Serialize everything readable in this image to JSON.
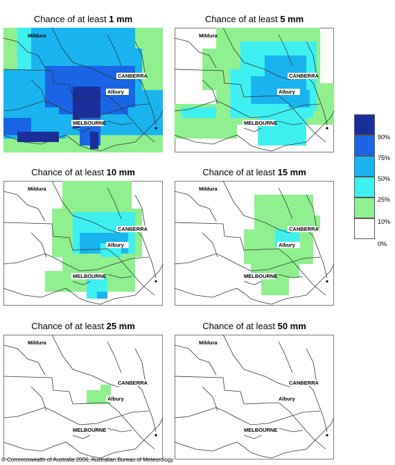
{
  "panels": [
    {
      "prefix": "Chance of at least ",
      "amount": "1 mm"
    },
    {
      "prefix": "Chance of at least ",
      "amount": "5 mm"
    },
    {
      "prefix": "Chance of at least ",
      "amount": "10 mm"
    },
    {
      "prefix": "Chance of at least ",
      "amount": "15 mm"
    },
    {
      "prefix": "Chance of at least ",
      "amount": "25 mm"
    },
    {
      "prefix": "Chance of at least ",
      "amount": "50 mm"
    }
  ],
  "cities": {
    "mildura": "Mildura",
    "canberra": "CANBERRA",
    "albury": "Albury",
    "melbourne": "MELBOURNE"
  },
  "legend": {
    "labels": [
      "90%",
      "75%",
      "50%",
      "25%",
      "10%",
      "0%"
    ],
    "colors": [
      "#1a2f9a",
      "#1a66e6",
      "#1ab4f0",
      "#3ef0f0",
      "#90f090",
      "#ffffff"
    ]
  },
  "copyright": "© Commonwealth of Australia 2006, Australian Bureau of Meteorology"
}
